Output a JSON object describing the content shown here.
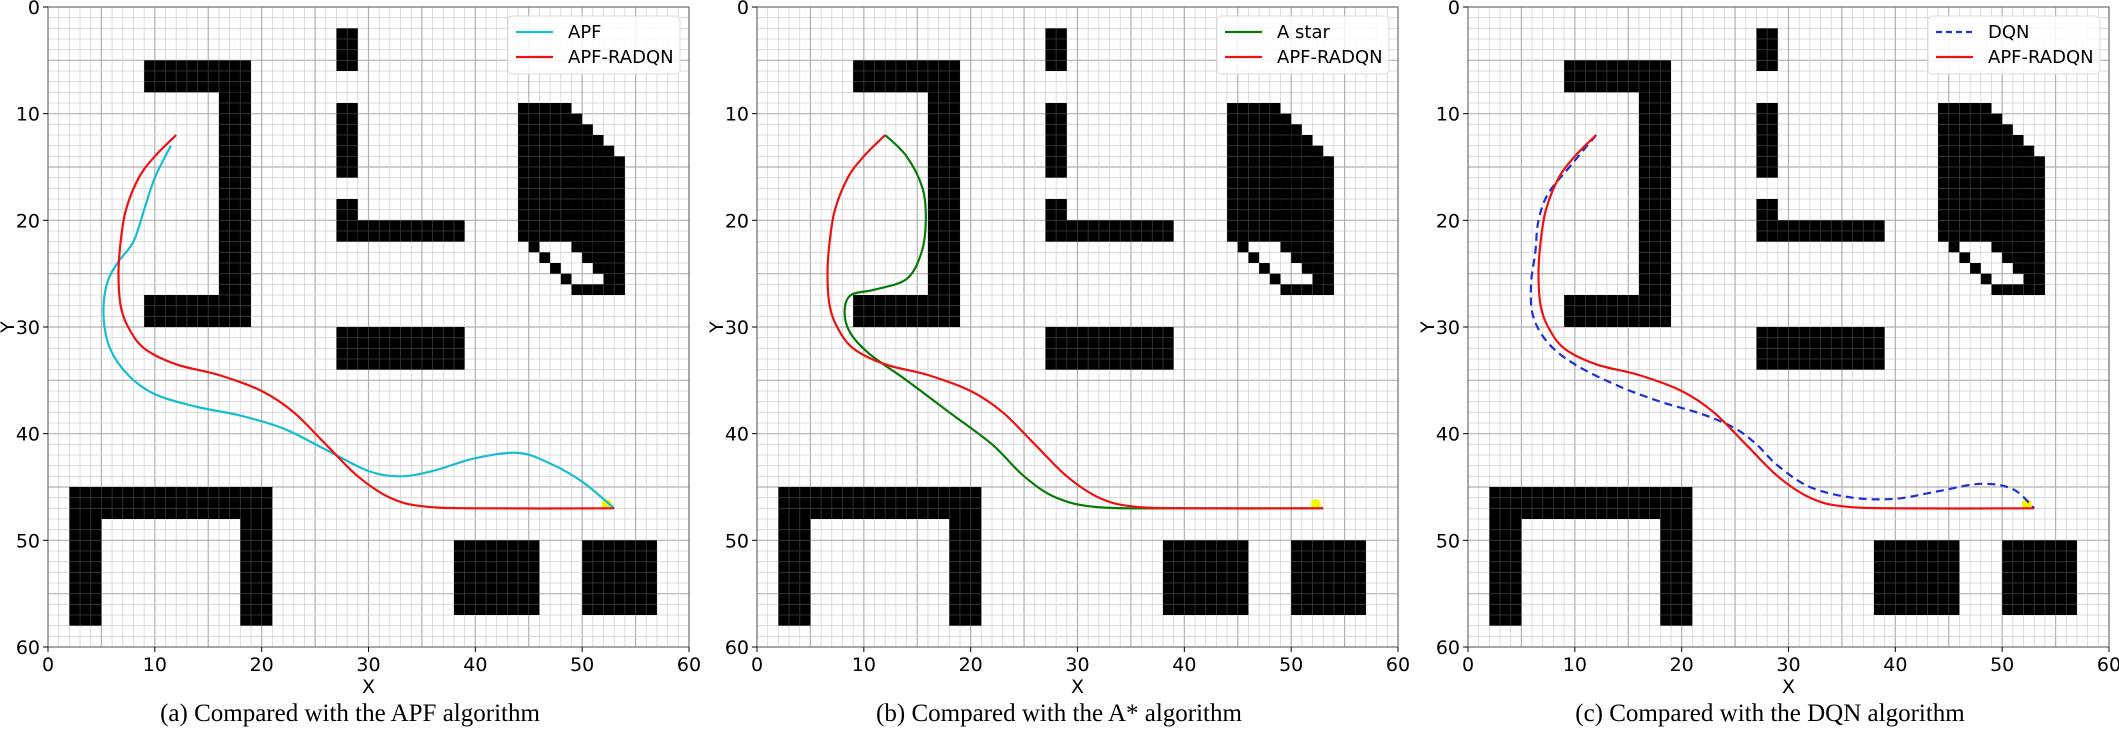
{
  "chart_data": [
    {
      "type": "line",
      "title": "",
      "caption": "(a) Compared with the APF algorithm",
      "xlabel": "X",
      "ylabel": "Y",
      "xlim": [
        0,
        60
      ],
      "ylim": [
        60,
        0
      ],
      "xticks": [
        "0",
        "10",
        "20",
        "30",
        "40",
        "50",
        "60"
      ],
      "yticks": [
        "0",
        "10",
        "20",
        "30",
        "40",
        "50",
        "60"
      ],
      "grid": true,
      "legend_position": "upper right",
      "goal": [
        52.3,
        46.6
      ],
      "series": [
        {
          "name": "APF",
          "color": "#17becf",
          "dash": false,
          "points": [
            [
              11.5,
              13
            ],
            [
              10,
              16
            ],
            [
              9,
              19
            ],
            [
              8,
              22
            ],
            [
              6.5,
              24
            ],
            [
              5.5,
              26
            ],
            [
              5.2,
              29
            ],
            [
              5.8,
              32
            ],
            [
              7.5,
              34.5
            ],
            [
              10,
              36.3
            ],
            [
              14,
              37.5
            ],
            [
              18,
              38.3
            ],
            [
              22,
              39.5
            ],
            [
              26,
              41.5
            ],
            [
              30,
              43.5
            ],
            [
              33,
              44
            ],
            [
              36,
              43.5
            ],
            [
              40,
              42.3
            ],
            [
              44,
              41.8
            ],
            [
              47,
              42.8
            ],
            [
              50,
              44.5
            ],
            [
              53,
              47
            ]
          ]
        },
        {
          "name": "APF-RADQN",
          "color": "#ee1111",
          "dash": false,
          "points": [
            [
              12,
              12
            ],
            [
              10,
              14
            ],
            [
              8.5,
              16
            ],
            [
              7.3,
              19
            ],
            [
              6.8,
              22
            ],
            [
              6.6,
              25
            ],
            [
              6.8,
              28
            ],
            [
              7.5,
              30
            ],
            [
              9,
              32
            ],
            [
              12,
              33.5
            ],
            [
              16,
              34.5
            ],
            [
              20,
              36
            ],
            [
              23,
              38
            ],
            [
              26,
              41
            ],
            [
              29,
              44
            ],
            [
              32,
              46
            ],
            [
              35,
              46.8
            ],
            [
              40,
              47
            ],
            [
              53,
              47
            ]
          ]
        }
      ]
    },
    {
      "type": "line",
      "title": "",
      "caption": "(b) Compared with the A* algorithm",
      "xlabel": "X",
      "ylabel": "Y",
      "xlim": [
        0,
        60
      ],
      "ylim": [
        60,
        0
      ],
      "xticks": [
        "0",
        "10",
        "20",
        "30",
        "40",
        "50",
        "60"
      ],
      "yticks": [
        "0",
        "10",
        "20",
        "30",
        "40",
        "50",
        "60"
      ],
      "grid": true,
      "legend_position": "upper right",
      "goal": [
        52.3,
        46.6
      ],
      "series": [
        {
          "name": "A star",
          "color": "#087a08",
          "dash": false,
          "points": [
            [
              12,
              12
            ],
            [
              14,
              14
            ],
            [
              15.5,
              17
            ],
            [
              15.8,
              20
            ],
            [
              15.4,
              23
            ],
            [
              14,
              25.5
            ],
            [
              11,
              26.5
            ],
            [
              8.8,
              27
            ],
            [
              8.2,
              28.5
            ],
            [
              8.7,
              30.5
            ],
            [
              10.5,
              32.5
            ],
            [
              14,
              35
            ],
            [
              18,
              38
            ],
            [
              22,
              41
            ],
            [
              25,
              44
            ],
            [
              28,
              46
            ],
            [
              32,
              46.9
            ],
            [
              40,
              47
            ],
            [
              53,
              47
            ]
          ]
        },
        {
          "name": "APF-RADQN",
          "color": "#ee1111",
          "dash": false,
          "points": [
            [
              12,
              12
            ],
            [
              10,
              14
            ],
            [
              8.5,
              16
            ],
            [
              7.3,
              19
            ],
            [
              6.8,
              22
            ],
            [
              6.6,
              25
            ],
            [
              6.8,
              28
            ],
            [
              7.5,
              30
            ],
            [
              9,
              32
            ],
            [
              12,
              33.5
            ],
            [
              16,
              34.5
            ],
            [
              20,
              36
            ],
            [
              23,
              38
            ],
            [
              26,
              41
            ],
            [
              29,
              44
            ],
            [
              32,
              46
            ],
            [
              35,
              46.8
            ],
            [
              40,
              47
            ],
            [
              53,
              47
            ]
          ]
        }
      ]
    },
    {
      "type": "line",
      "title": "",
      "caption": "(c) Compared with the DQN algorithm",
      "xlabel": "X",
      "ylabel": "Y",
      "xlim": [
        0,
        60
      ],
      "ylim": [
        60,
        0
      ],
      "xticks": [
        "0",
        "10",
        "20",
        "30",
        "40",
        "50",
        "60"
      ],
      "yticks": [
        "0",
        "10",
        "20",
        "30",
        "40",
        "50",
        "60"
      ],
      "grid": true,
      "legend_position": "upper right",
      "goal": [
        52.3,
        46.6
      ],
      "series": [
        {
          "name": "DQN",
          "color": "#1f2fd6",
          "dash": true,
          "points": [
            [
              12,
              12
            ],
            [
              9.5,
              15
            ],
            [
              7.5,
              17.5
            ],
            [
              6.6,
              20
            ],
            [
              6.3,
              23
            ],
            [
              5.9,
              26
            ],
            [
              6.1,
              29
            ],
            [
              7.5,
              31.5
            ],
            [
              10,
              33.5
            ],
            [
              14,
              35.5
            ],
            [
              18,
              37
            ],
            [
              22,
              38.2
            ],
            [
              25,
              39.5
            ],
            [
              27,
              41
            ],
            [
              29,
              43
            ],
            [
              32,
              45
            ],
            [
              36,
              46
            ],
            [
              40,
              46.1
            ],
            [
              44,
              45.4
            ],
            [
              48,
              44.7
            ],
            [
              51,
              45.2
            ],
            [
              53,
              47
            ]
          ]
        },
        {
          "name": "APF-RADQN",
          "color": "#ee1111",
          "dash": false,
          "points": [
            [
              12,
              12
            ],
            [
              10,
              14
            ],
            [
              8.5,
              16
            ],
            [
              7.3,
              19
            ],
            [
              6.8,
              22
            ],
            [
              6.6,
              25
            ],
            [
              6.8,
              28
            ],
            [
              7.5,
              30
            ],
            [
              9,
              32
            ],
            [
              12,
              33.5
            ],
            [
              16,
              34.5
            ],
            [
              20,
              36
            ],
            [
              23,
              38
            ],
            [
              26,
              41
            ],
            [
              29,
              44
            ],
            [
              32,
              46
            ],
            [
              35,
              46.8
            ],
            [
              40,
              47
            ],
            [
              53,
              47
            ]
          ]
        }
      ]
    }
  ],
  "obstacles": [
    [
      9,
      5,
      19,
      8
    ],
    [
      16,
      8,
      19,
      30
    ],
    [
      9,
      27,
      19,
      30
    ],
    [
      27,
      2,
      29,
      6
    ],
    [
      27,
      9,
      29,
      16
    ],
    [
      27,
      18,
      29,
      22
    ],
    [
      29,
      20,
      39,
      22
    ],
    [
      27,
      30,
      39,
      34
    ],
    [
      44,
      9,
      49,
      22
    ],
    [
      49,
      10,
      50,
      23
    ],
    [
      50,
      11,
      51,
      24
    ],
    [
      51,
      12,
      52,
      25
    ],
    [
      52,
      13,
      53,
      26
    ],
    [
      53,
      14,
      54,
      27
    ],
    [
      44,
      22,
      45,
      22
    ],
    [
      45,
      22,
      46,
      23
    ],
    [
      46,
      23,
      47,
      24
    ],
    [
      47,
      24,
      48,
      25
    ],
    [
      48,
      25,
      49,
      26
    ],
    [
      49,
      26,
      54,
      27
    ],
    [
      2,
      45,
      21,
      48
    ],
    [
      2,
      48,
      5,
      58
    ],
    [
      18,
      48,
      21,
      58
    ],
    [
      38,
      50,
      46,
      57
    ],
    [
      50,
      50,
      57,
      57
    ]
  ],
  "captions": {
    "a": "(a) Compared with the APF algorithm",
    "b": "(b) Compared with the A* algorithm",
    "c": "(c) Compared with the DQN algorithm"
  },
  "axes": {
    "x_label": "X",
    "y_label": "Y"
  }
}
